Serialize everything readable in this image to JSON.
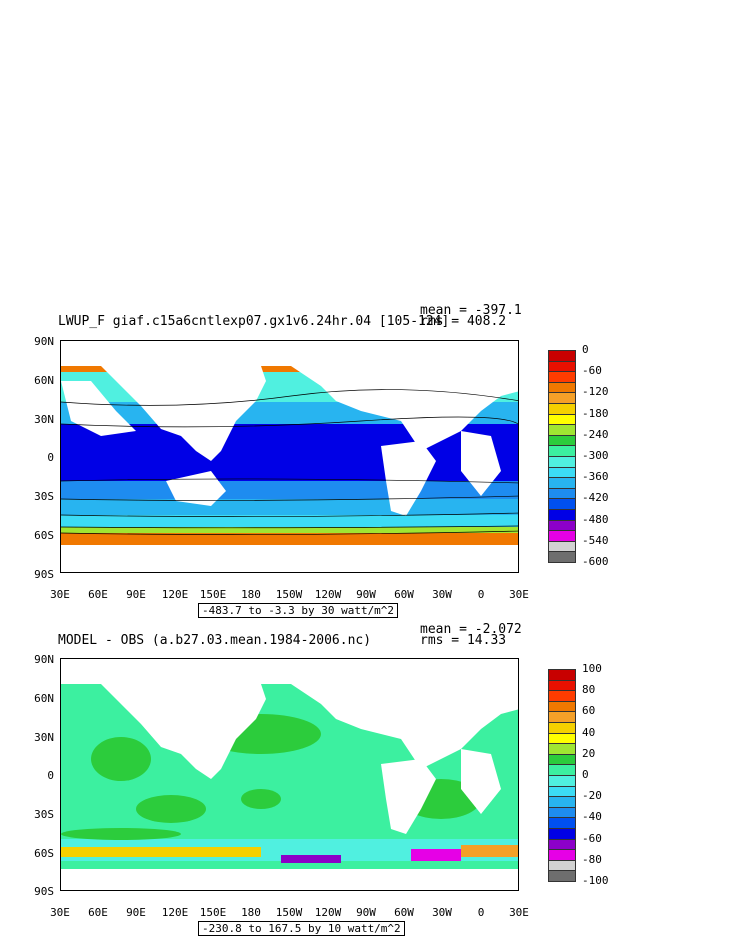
{
  "panels": [
    {
      "title": "LWUP_F giaf.c15a6cntlexp07.gx1v6.24hr.04  [105-124]",
      "mean_text": "mean = -397.1",
      "rms_text": "rms = 408.2",
      "contour_info": "-483.7 to -3.3 by 30 watt/m^2",
      "colorbar": {
        "labels": [
          "0",
          "-60",
          "-120",
          "-180",
          "-240",
          "-300",
          "-360",
          "-420",
          "-480",
          "-540",
          "-600"
        ],
        "colors": [
          "#c80000",
          "#e81000",
          "#ff3c00",
          "#f07800",
          "#f5a028",
          "#f5d000",
          "#ffff00",
          "#a0e632",
          "#2ccc3c",
          "#3cf0a0",
          "#50f0e0",
          "#3cdcf5",
          "#28b4f0",
          "#1e8cf0",
          "#0050f0",
          "#0000e6",
          "#8c00c8",
          "#e600e6",
          "#d2d2d2",
          "#6e6e6e"
        ]
      }
    },
    {
      "title": "MODEL - OBS (a.b27.03.mean.1984-2006.nc)",
      "mean_text": "mean = -2.072",
      "rms_text": "rms = 14.33",
      "contour_info": "-230.8 to 167.5 by 10 watt/m^2",
      "colorbar": {
        "labels": [
          "100",
          "80",
          "60",
          "40",
          "20",
          "0",
          "-20",
          "-40",
          "-60",
          "-80",
          "-100"
        ],
        "colors": [
          "#c80000",
          "#e81000",
          "#ff3c00",
          "#f07800",
          "#f5a028",
          "#f5d000",
          "#ffff00",
          "#a0e632",
          "#2ccc3c",
          "#3cf0a0",
          "#50f0e0",
          "#3cdcf5",
          "#28b4f0",
          "#1e8cf0",
          "#0050f0",
          "#0000e6",
          "#8c00c8",
          "#e600e6",
          "#d2d2d2",
          "#6e6e6e"
        ]
      }
    }
  ],
  "axes": {
    "y_labels": [
      "90N",
      "60N",
      "30N",
      "0",
      "30S",
      "60S",
      "90S"
    ],
    "x_labels": [
      "30E",
      "60E",
      "90E",
      "120E",
      "150E",
      "180",
      "150W",
      "120W",
      "90W",
      "60W",
      "30W",
      "0",
      "30E"
    ]
  }
}
